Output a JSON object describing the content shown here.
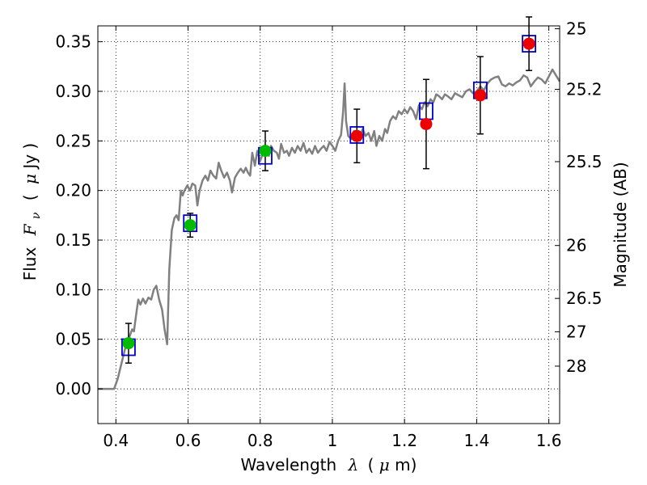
{
  "chart_data": {
    "type": "scatter",
    "xlabel": {
      "text": "Wavelength",
      "symbol": "λ",
      "units_open": "(",
      "units_mu": "μ",
      "units_rest": "m)"
    },
    "ylabel": {
      "text": "Flux",
      "symbol": "F",
      "subscript": "ν",
      "units_open": "(",
      "units_mu": "μ",
      "units_rest": "Jy )"
    },
    "y2label": "Magnitude (AB)",
    "xlim": [
      0.35,
      1.63
    ],
    "ylim": [
      -0.035,
      0.366
    ],
    "xticks": [
      0.4,
      0.6,
      0.8,
      1.0,
      1.2,
      1.4,
      1.6
    ],
    "xtick_labels": [
      "0.4",
      "0.6",
      "0.8",
      "1",
      "1.2",
      "1.4",
      "1.6"
    ],
    "yticks": [
      0.0,
      0.05,
      0.1,
      0.15,
      0.2,
      0.25,
      0.3,
      0.35
    ],
    "ytick_labels": [
      "0.00",
      "0.05",
      "0.10",
      "0.15",
      "0.20",
      "0.25",
      "0.30",
      "0.35"
    ],
    "y2ticks": [
      {
        "label": "25",
        "mag": 25.0
      },
      {
        "label": "25.2",
        "mag": 25.2
      },
      {
        "label": "25.5",
        "mag": 25.5
      },
      {
        "label": "26",
        "mag": 26.0
      },
      {
        "label": "26.5",
        "mag": 26.5
      },
      {
        "label": "27",
        "mag": 27.0
      },
      {
        "label": "28",
        "mag": 28.0
      }
    ],
    "grid": true,
    "colors": {
      "sed": "#808080",
      "green": "#00bb00",
      "red": "#ee0000",
      "box": "#0000cc",
      "err": "#000000"
    },
    "observed_points": [
      {
        "x": 0.435,
        "y": 0.046,
        "err": 0.02,
        "color": "green"
      },
      {
        "x": 0.606,
        "y": 0.165,
        "err": 0.012,
        "color": "green"
      },
      {
        "x": 0.814,
        "y": 0.24,
        "err": 0.02,
        "color": "green"
      },
      {
        "x": 1.068,
        "y": 0.255,
        "err": 0.027,
        "color": "red"
      },
      {
        "x": 1.26,
        "y": 0.267,
        "err": 0.045,
        "color": "red"
      },
      {
        "x": 1.41,
        "y": 0.296,
        "err": 0.039,
        "color": "red"
      },
      {
        "x": 1.545,
        "y": 0.348,
        "err": 0.027,
        "color": "red"
      }
    ],
    "model_boxes": [
      {
        "x": 0.435,
        "y": 0.042
      },
      {
        "x": 0.606,
        "y": 0.167
      },
      {
        "x": 0.814,
        "y": 0.235
      },
      {
        "x": 1.068,
        "y": 0.256
      },
      {
        "x": 1.26,
        "y": 0.28
      },
      {
        "x": 1.41,
        "y": 0.301
      },
      {
        "x": 1.545,
        "y": 0.348
      }
    ],
    "sed_curve": [
      [
        0.35,
        0.0
      ],
      [
        0.395,
        0.0
      ],
      [
        0.405,
        0.01
      ],
      [
        0.415,
        0.025
      ],
      [
        0.425,
        0.04
      ],
      [
        0.435,
        0.05
      ],
      [
        0.445,
        0.06
      ],
      [
        0.45,
        0.058
      ],
      [
        0.458,
        0.08
      ],
      [
        0.462,
        0.09
      ],
      [
        0.468,
        0.085
      ],
      [
        0.475,
        0.091
      ],
      [
        0.482,
        0.086
      ],
      [
        0.49,
        0.092
      ],
      [
        0.498,
        0.09
      ],
      [
        0.505,
        0.1
      ],
      [
        0.512,
        0.104
      ],
      [
        0.52,
        0.09
      ],
      [
        0.528,
        0.08
      ],
      [
        0.535,
        0.06
      ],
      [
        0.542,
        0.045
      ],
      [
        0.548,
        0.12
      ],
      [
        0.555,
        0.16
      ],
      [
        0.562,
        0.172
      ],
      [
        0.568,
        0.175
      ],
      [
        0.574,
        0.17
      ],
      [
        0.58,
        0.2
      ],
      [
        0.585,
        0.195
      ],
      [
        0.59,
        0.2
      ],
      [
        0.598,
        0.205
      ],
      [
        0.605,
        0.2
      ],
      [
        0.612,
        0.207
      ],
      [
        0.62,
        0.205
      ],
      [
        0.626,
        0.185
      ],
      [
        0.632,
        0.2
      ],
      [
        0.64,
        0.21
      ],
      [
        0.648,
        0.215
      ],
      [
        0.655,
        0.21
      ],
      [
        0.662,
        0.22
      ],
      [
        0.67,
        0.215
      ],
      [
        0.678,
        0.212
      ],
      [
        0.685,
        0.228
      ],
      [
        0.692,
        0.22
      ],
      [
        0.7,
        0.213
      ],
      [
        0.708,
        0.218
      ],
      [
        0.716,
        0.21
      ],
      [
        0.722,
        0.198
      ],
      [
        0.73,
        0.213
      ],
      [
        0.738,
        0.218
      ],
      [
        0.746,
        0.222
      ],
      [
        0.754,
        0.218
      ],
      [
        0.76,
        0.223
      ],
      [
        0.766,
        0.218
      ],
      [
        0.772,
        0.215
      ],
      [
        0.778,
        0.238
      ],
      [
        0.785,
        0.225
      ],
      [
        0.792,
        0.24
      ],
      [
        0.8,
        0.23
      ],
      [
        0.808,
        0.238
      ],
      [
        0.816,
        0.243
      ],
      [
        0.824,
        0.235
      ],
      [
        0.83,
        0.245
      ],
      [
        0.838,
        0.24
      ],
      [
        0.846,
        0.238
      ],
      [
        0.852,
        0.232
      ],
      [
        0.858,
        0.247
      ],
      [
        0.866,
        0.238
      ],
      [
        0.874,
        0.24
      ],
      [
        0.88,
        0.235
      ],
      [
        0.888,
        0.243
      ],
      [
        0.896,
        0.238
      ],
      [
        0.904,
        0.245
      ],
      [
        0.912,
        0.24
      ],
      [
        0.92,
        0.248
      ],
      [
        0.928,
        0.238
      ],
      [
        0.936,
        0.242
      ],
      [
        0.944,
        0.237
      ],
      [
        0.952,
        0.245
      ],
      [
        0.96,
        0.238
      ],
      [
        0.968,
        0.242
      ],
      [
        0.976,
        0.245
      ],
      [
        0.984,
        0.24
      ],
      [
        0.992,
        0.249
      ],
      [
        1.0,
        0.245
      ],
      [
        1.008,
        0.24
      ],
      [
        1.016,
        0.25
      ],
      [
        1.024,
        0.256
      ],
      [
        1.03,
        0.28
      ],
      [
        1.034,
        0.308
      ],
      [
        1.038,
        0.27
      ],
      [
        1.044,
        0.255
      ],
      [
        1.052,
        0.252
      ],
      [
        1.06,
        0.26
      ],
      [
        1.068,
        0.255
      ],
      [
        1.076,
        0.253
      ],
      [
        1.084,
        0.262
      ],
      [
        1.092,
        0.255
      ],
      [
        1.1,
        0.258
      ],
      [
        1.108,
        0.25
      ],
      [
        1.116,
        0.26
      ],
      [
        1.122,
        0.245
      ],
      [
        1.13,
        0.255
      ],
      [
        1.138,
        0.25
      ],
      [
        1.146,
        0.262
      ],
      [
        1.152,
        0.258
      ],
      [
        1.16,
        0.27
      ],
      [
        1.168,
        0.275
      ],
      [
        1.176,
        0.272
      ],
      [
        1.184,
        0.28
      ],
      [
        1.192,
        0.277
      ],
      [
        1.2,
        0.282
      ],
      [
        1.208,
        0.278
      ],
      [
        1.216,
        0.284
      ],
      [
        1.224,
        0.28
      ],
      [
        1.232,
        0.272
      ],
      [
        1.24,
        0.286
      ],
      [
        1.248,
        0.282
      ],
      [
        1.256,
        0.289
      ],
      [
        1.264,
        0.285
      ],
      [
        1.272,
        0.292
      ],
      [
        1.28,
        0.289
      ],
      [
        1.288,
        0.297
      ],
      [
        1.296,
        0.295
      ],
      [
        1.304,
        0.292
      ],
      [
        1.312,
        0.297
      ],
      [
        1.32,
        0.295
      ],
      [
        1.33,
        0.292
      ],
      [
        1.34,
        0.298
      ],
      [
        1.35,
        0.296
      ],
      [
        1.36,
        0.294
      ],
      [
        1.37,
        0.3
      ],
      [
        1.38,
        0.302
      ],
      [
        1.39,
        0.298
      ],
      [
        1.4,
        0.3
      ],
      [
        1.41,
        0.305
      ],
      [
        1.42,
        0.301
      ],
      [
        1.43,
        0.308
      ],
      [
        1.44,
        0.312
      ],
      [
        1.45,
        0.314
      ],
      [
        1.46,
        0.315
      ],
      [
        1.47,
        0.307
      ],
      [
        1.48,
        0.305
      ],
      [
        1.49,
        0.308
      ],
      [
        1.5,
        0.306
      ],
      [
        1.51,
        0.309
      ],
      [
        1.52,
        0.311
      ],
      [
        1.53,
        0.316
      ],
      [
        1.54,
        0.314
      ],
      [
        1.55,
        0.305
      ],
      [
        1.56,
        0.31
      ],
      [
        1.57,
        0.314
      ],
      [
        1.58,
        0.312
      ],
      [
        1.59,
        0.308
      ],
      [
        1.6,
        0.315
      ],
      [
        1.61,
        0.322
      ],
      [
        1.62,
        0.316
      ],
      [
        1.63,
        0.31
      ]
    ]
  }
}
